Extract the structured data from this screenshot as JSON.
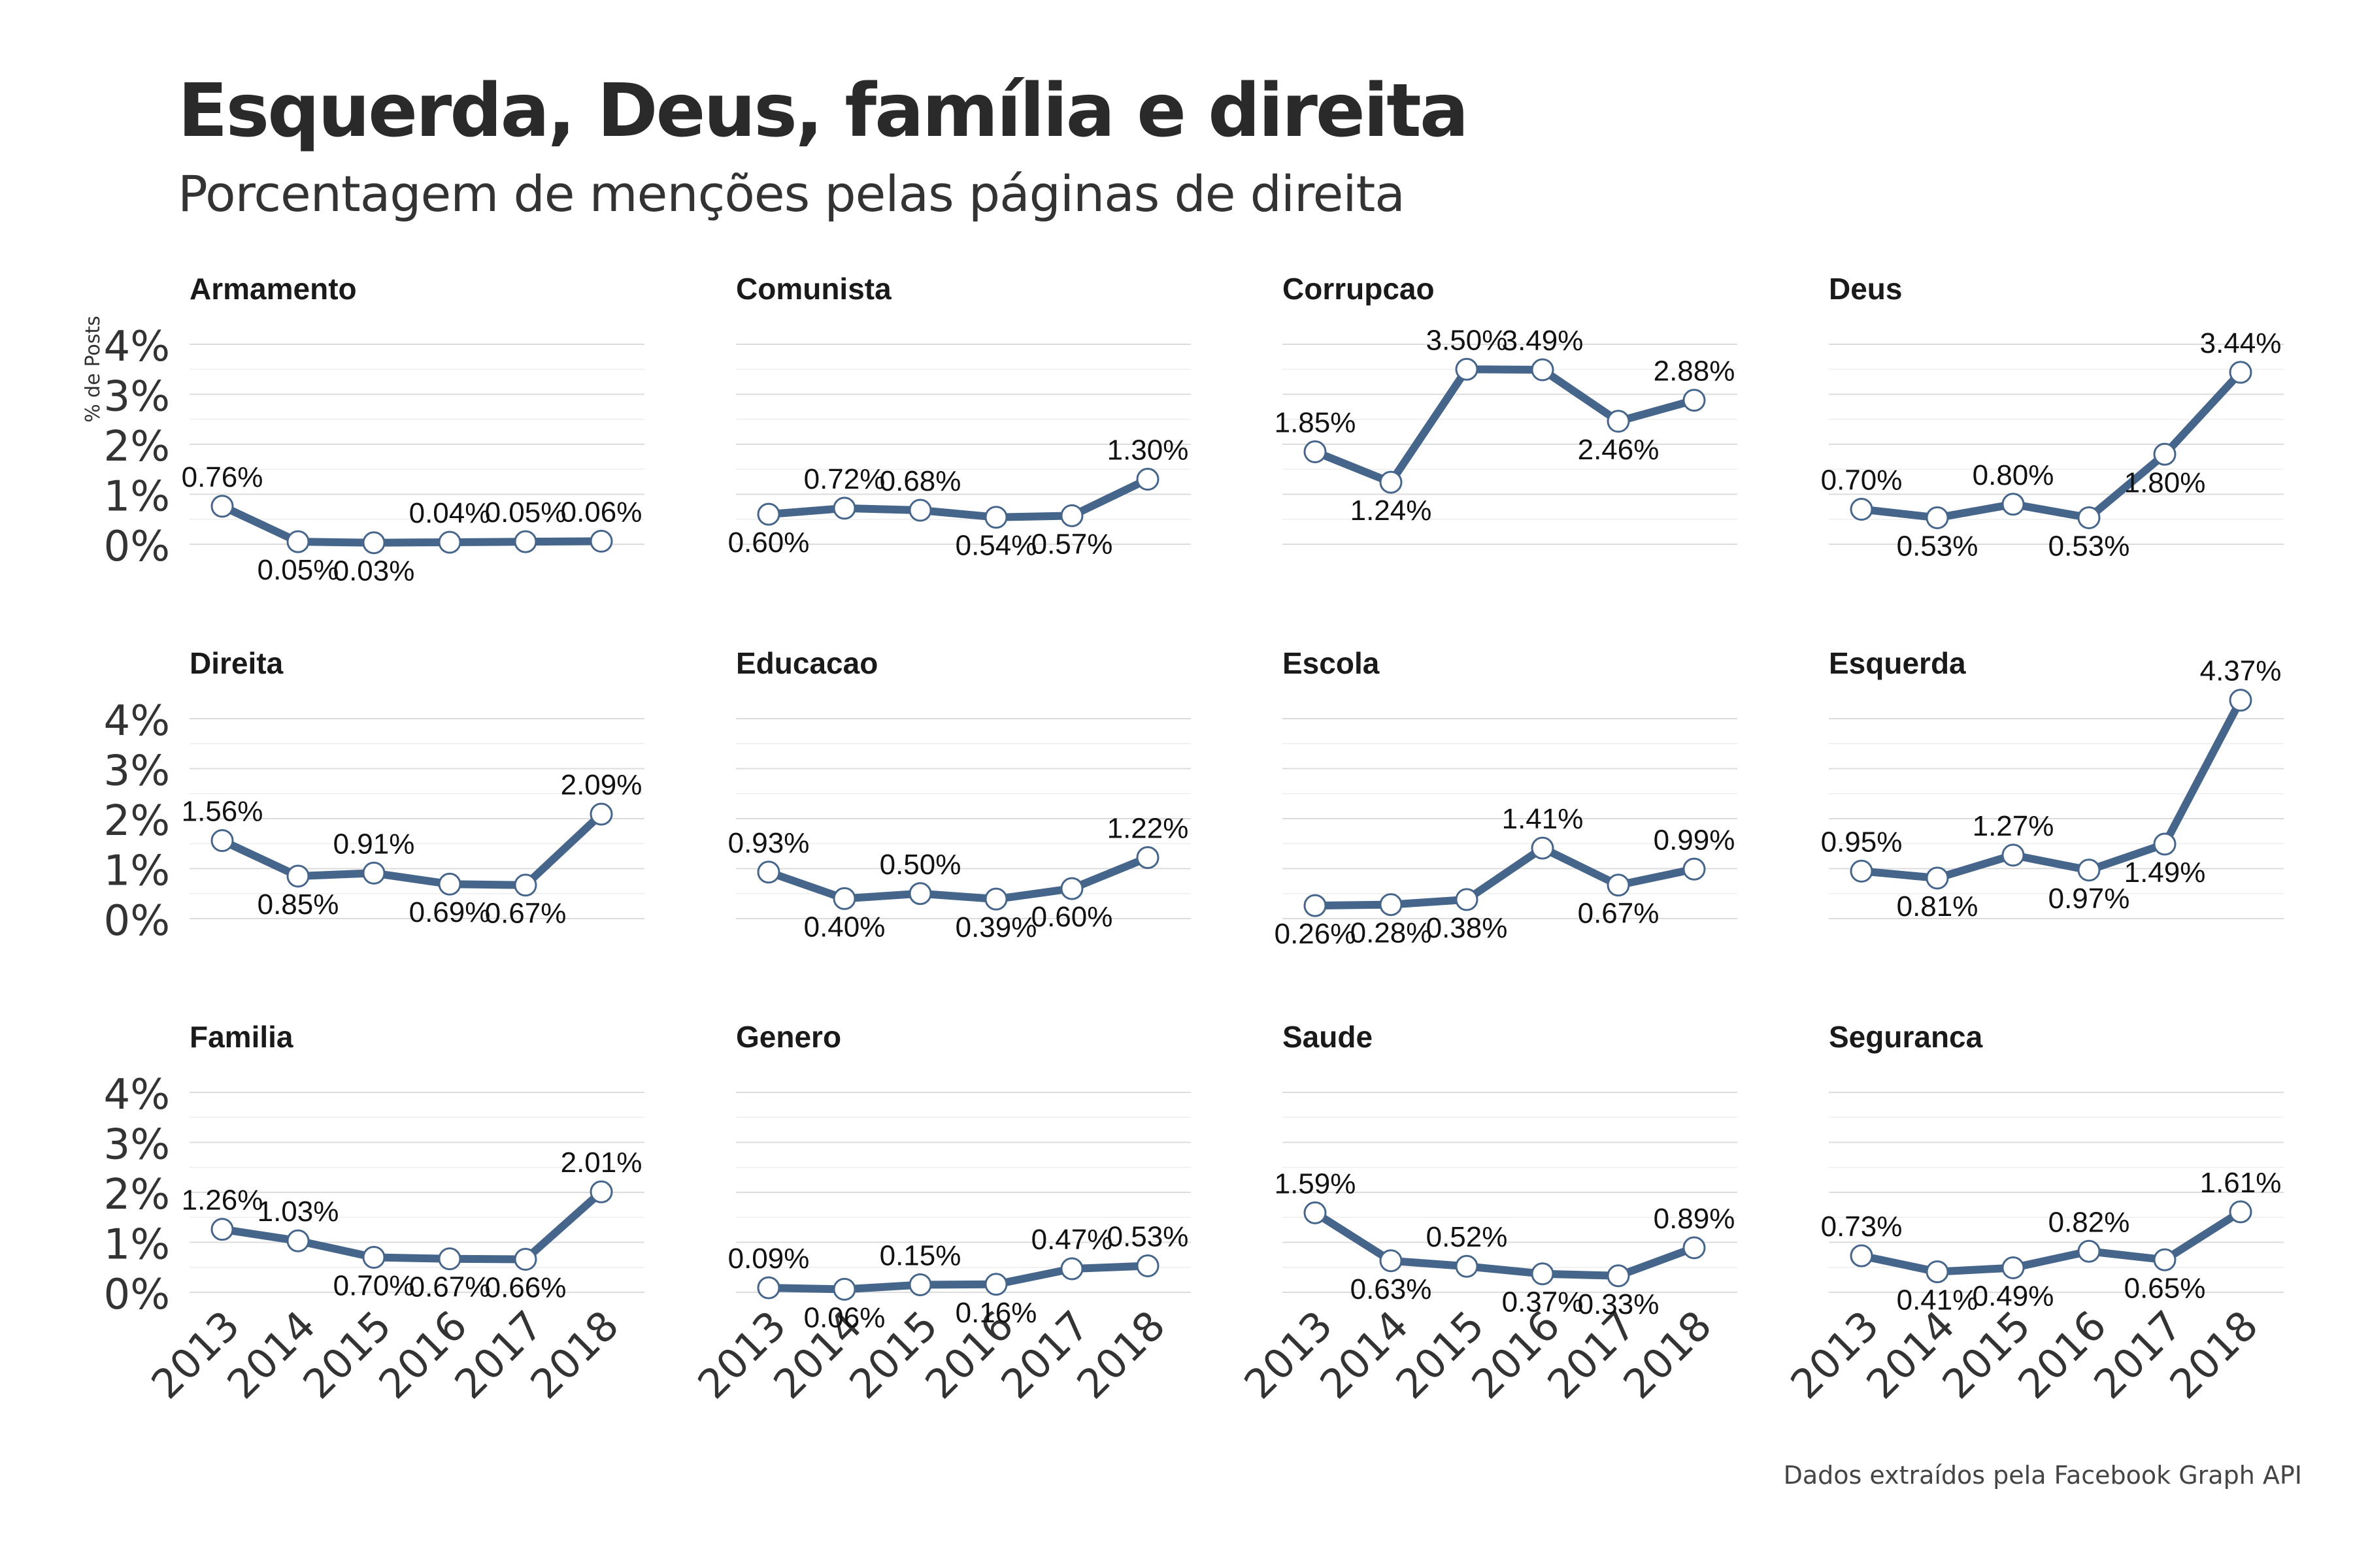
{
  "title": "Esquerda, Deus, família e direita",
  "subtitle": "Porcentagem de menções pelas páginas de direita",
  "caption": "Dados extraídos pela Facebook Graph API",
  "line_color": "#46658a",
  "chart_data": {
    "type": "line",
    "ylabel": "% de Posts",
    "ylim": [
      0,
      4.5
    ],
    "yticks": [
      "0%",
      "1%",
      "2%",
      "3%",
      "4%"
    ],
    "x": [
      "2013",
      "2014",
      "2015",
      "2016",
      "2017",
      "2018"
    ],
    "panels": [
      {
        "name": "Armamento",
        "values": [
          0.76,
          0.05,
          0.03,
          0.04,
          0.05,
          0.06
        ],
        "labels": [
          "0.76%",
          "0.05%",
          "0.03%",
          "0.04%",
          "0.05%",
          "0.06%"
        ]
      },
      {
        "name": "Comunista",
        "values": [
          0.6,
          0.72,
          0.68,
          0.54,
          0.57,
          1.3
        ],
        "labels": [
          "0.60%",
          "0.72%",
          "0.68%",
          "0.54%",
          "0.57%",
          "1.30%"
        ]
      },
      {
        "name": "Corrupcao",
        "values": [
          1.85,
          1.24,
          3.5,
          3.49,
          2.46,
          2.88
        ],
        "labels": [
          "1.85%",
          "1.24%",
          "3.50%",
          "3.49%",
          "2.46%",
          "2.88%"
        ]
      },
      {
        "name": "Deus",
        "values": [
          0.7,
          0.53,
          0.8,
          0.53,
          1.8,
          3.44
        ],
        "labels": [
          "0.70%",
          "0.53%",
          "0.80%",
          "0.53%",
          "1.80%",
          "3.44%"
        ]
      },
      {
        "name": "Direita",
        "values": [
          1.56,
          0.85,
          0.91,
          0.69,
          0.67,
          2.09
        ],
        "labels": [
          "1.56%",
          "0.85%",
          "0.91%",
          "0.69%",
          "0.67%",
          "2.09%"
        ]
      },
      {
        "name": "Educacao",
        "values": [
          0.93,
          0.4,
          0.5,
          0.39,
          0.6,
          1.22
        ],
        "labels": [
          "0.93%",
          "0.40%",
          "0.50%",
          "0.39%",
          "0.60%",
          "1.22%"
        ]
      },
      {
        "name": "Escola",
        "values": [
          0.26,
          0.28,
          0.38,
          1.41,
          0.67,
          0.99
        ],
        "labels": [
          "0.26%",
          "0.28%",
          "0.38%",
          "1.41%",
          "0.67%",
          "0.99%"
        ]
      },
      {
        "name": "Esquerda",
        "values": [
          0.95,
          0.81,
          1.27,
          0.97,
          1.49,
          4.37
        ],
        "labels": [
          "0.95%",
          "0.81%",
          "1.27%",
          "0.97%",
          "1.49%",
          "4.37%"
        ]
      },
      {
        "name": "Familia",
        "values": [
          1.26,
          1.03,
          0.7,
          0.67,
          0.66,
          2.01
        ],
        "labels": [
          "1.26%",
          "1.03%",
          "0.70%",
          "0.67%",
          "0.66%",
          "2.01%"
        ]
      },
      {
        "name": "Genero",
        "values": [
          0.09,
          0.06,
          0.15,
          0.16,
          0.47,
          0.53
        ],
        "labels": [
          "0.09%",
          "0.06%",
          "0.15%",
          "0.16%",
          "0.47%",
          "0.53%"
        ]
      },
      {
        "name": "Saude",
        "values": [
          1.59,
          0.63,
          0.52,
          0.37,
          0.33,
          0.89
        ],
        "labels": [
          "1.59%",
          "0.63%",
          "0.52%",
          "0.37%",
          "0.33%",
          "0.89%"
        ]
      },
      {
        "name": "Seguranca",
        "values": [
          0.73,
          0.41,
          0.49,
          0.82,
          0.65,
          1.61
        ],
        "labels": [
          "0.73%",
          "0.41%",
          "0.49%",
          "0.82%",
          "0.65%",
          "1.61%"
        ]
      }
    ]
  }
}
